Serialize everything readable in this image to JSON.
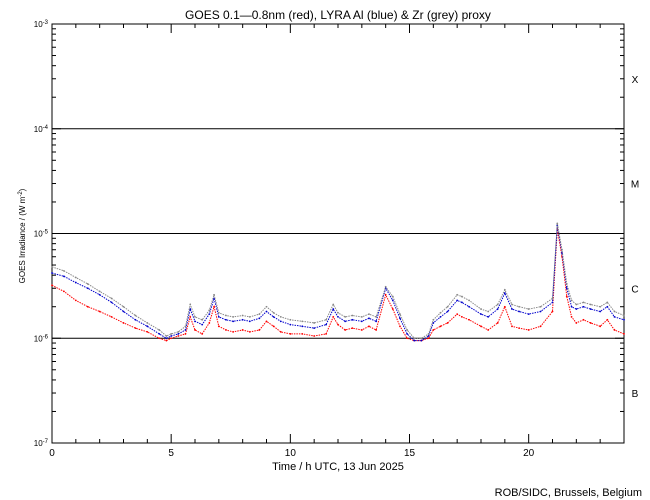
{
  "chart_data": {
    "type": "scatter",
    "title": "GOES 0.1—0.8nm (red), LYRA Al (blue) & Zr (grey) proxy",
    "xlabel": "Time / h UTC, 13 Jun 2025",
    "ylabel": "GOES Irradiance / (W m",
    "ylabel_exp": "-2",
    "ylabel_close": ")",
    "xlim": [
      0,
      24
    ],
    "ylim": [
      1e-07,
      0.001
    ],
    "yscale": "log",
    "x_ticks": [
      "0",
      "5",
      "10",
      "15",
      "20"
    ],
    "x_tick_values": [
      0,
      5,
      10,
      15,
      20
    ],
    "y_tick_values": [
      1e-07,
      1e-06,
      1e-05,
      0.0001,
      0.001
    ],
    "y_tick_labels": [
      {
        "base": "10",
        "exp": "-7"
      },
      {
        "base": "10",
        "exp": "-6"
      },
      {
        "base": "10",
        "exp": "-5"
      },
      {
        "base": "10",
        "exp": "-4"
      },
      {
        "base": "10",
        "exp": "-3"
      }
    ],
    "flare_class_lines": [
      1e-06,
      1e-05,
      0.0001
    ],
    "flare_classes": [
      {
        "label": "X",
        "value": 0.0003
      },
      {
        "label": "M",
        "value": 3e-05
      },
      {
        "label": "C",
        "value": 3e-06
      },
      {
        "label": "B",
        "value": 3e-07
      }
    ],
    "series": [
      {
        "name": "GOES 0.1—0.8nm",
        "color": "#ff0000",
        "x": [
          0,
          0.5,
          1,
          1.5,
          2,
          2.5,
          3,
          3.5,
          4,
          4.5,
          4.8,
          5,
          5.3,
          5.6,
          5.8,
          6,
          6.3,
          6.6,
          6.8,
          7,
          7.3,
          7.6,
          8,
          8.3,
          8.7,
          9,
          9.3,
          9.6,
          10,
          10.5,
          11,
          11.5,
          11.8,
          12,
          12.3,
          12.6,
          13,
          13.3,
          13.6,
          14,
          14.3,
          14.6,
          14.9,
          15.2,
          15.5,
          15.8,
          16,
          16.3,
          16.6,
          17,
          17.2,
          17.5,
          18,
          18.3,
          18.7,
          19,
          19.3,
          19.6,
          20,
          20.5,
          21,
          21.2,
          21.4,
          21.6,
          21.8,
          22,
          22.3,
          22.6,
          23,
          23.3,
          23.6,
          24
        ],
        "y": [
          3.2e-06,
          2.8e-06,
          2.3e-06,
          2e-06,
          1.8e-06,
          1.6e-06,
          1.4e-06,
          1.25e-06,
          1.15e-06,
          1e-06,
          9.5e-07,
          1e-06,
          1.05e-06,
          1.1e-06,
          1.6e-06,
          1.2e-06,
          1.1e-06,
          1.4e-06,
          2e-06,
          1.3e-06,
          1.2e-06,
          1.15e-06,
          1.2e-06,
          1.15e-06,
          1.2e-06,
          1.45e-06,
          1.3e-06,
          1.15e-06,
          1.1e-06,
          1.1e-06,
          1.05e-06,
          1.1e-06,
          1.6e-06,
          1.35e-06,
          1.2e-06,
          1.25e-06,
          1.2e-06,
          1.3e-06,
          1.2e-06,
          2.6e-06,
          1.9e-06,
          1.3e-06,
          1e-06,
          9.5e-07,
          9.5e-07,
          1e-06,
          1.2e-06,
          1.3e-06,
          1.4e-06,
          1.7e-06,
          1.6e-06,
          1.5e-06,
          1.3e-06,
          1.2e-06,
          1.4e-06,
          2e-06,
          1.3e-06,
          1.25e-06,
          1.2e-06,
          1.3e-06,
          1.8e-06,
          1.1e-05,
          6e-06,
          2.5e-06,
          1.6e-06,
          1.4e-06,
          1.5e-06,
          1.4e-06,
          1.3e-06,
          1.5e-06,
          1.2e-06,
          1.1e-06
        ]
      },
      {
        "name": "LYRA Al",
        "color": "#0000cc",
        "x": [
          0,
          0.5,
          1,
          1.5,
          2,
          2.5,
          3,
          3.5,
          4,
          4.5,
          4.8,
          5,
          5.3,
          5.6,
          5.8,
          6,
          6.3,
          6.6,
          6.8,
          7,
          7.3,
          7.6,
          8,
          8.3,
          8.7,
          9,
          9.3,
          9.6,
          10,
          10.5,
          11,
          11.5,
          11.8,
          12,
          12.3,
          12.6,
          13,
          13.3,
          13.6,
          14,
          14.3,
          14.6,
          14.9,
          15.2,
          15.5,
          15.8,
          16,
          16.3,
          16.6,
          17,
          17.2,
          17.5,
          18,
          18.3,
          18.7,
          19,
          19.3,
          19.6,
          20,
          20.5,
          21,
          21.2,
          21.4,
          21.6,
          21.8,
          22,
          22.3,
          22.6,
          23,
          23.3,
          23.6,
          24
        ],
        "y": [
          4.2e-06,
          3.9e-06,
          3.4e-06,
          3e-06,
          2.6e-06,
          2.2e-06,
          1.8e-06,
          1.5e-06,
          1.3e-06,
          1.1e-06,
          1e-06,
          1.05e-06,
          1.1e-06,
          1.2e-06,
          1.9e-06,
          1.45e-06,
          1.35e-06,
          1.7e-06,
          2.4e-06,
          1.6e-06,
          1.5e-06,
          1.45e-06,
          1.5e-06,
          1.45e-06,
          1.55e-06,
          1.8e-06,
          1.6e-06,
          1.45e-06,
          1.35e-06,
          1.3e-06,
          1.25e-06,
          1.35e-06,
          1.9e-06,
          1.6e-06,
          1.45e-06,
          1.5e-06,
          1.45e-06,
          1.55e-06,
          1.45e-06,
          3e-06,
          2.3e-06,
          1.55e-06,
          1.1e-06,
          9.5e-07,
          9.5e-07,
          1.05e-06,
          1.4e-06,
          1.6e-06,
          1.8e-06,
          2.3e-06,
          2.2e-06,
          2e-06,
          1.7e-06,
          1.6e-06,
          1.9e-06,
          2.7e-06,
          1.9e-06,
          1.8e-06,
          1.7e-06,
          1.8e-06,
          2.2e-06,
          1.2e-05,
          6.5e-06,
          3e-06,
          2e-06,
          1.9e-06,
          2e-06,
          1.9e-06,
          1.8e-06,
          2e-06,
          1.6e-06,
          1.5e-06
        ]
      },
      {
        "name": "Zr",
        "color": "#888888",
        "x": [
          0,
          0.5,
          1,
          1.5,
          2,
          2.5,
          3,
          3.5,
          4,
          4.5,
          4.8,
          5,
          5.3,
          5.6,
          5.8,
          6,
          6.3,
          6.6,
          6.8,
          7,
          7.3,
          7.6,
          8,
          8.3,
          8.7,
          9,
          9.3,
          9.6,
          10,
          10.5,
          11,
          11.5,
          11.8,
          12,
          12.3,
          12.6,
          13,
          13.3,
          13.6,
          14,
          14.3,
          14.6,
          14.9,
          15.2,
          15.5,
          15.8,
          16,
          16.3,
          16.6,
          17,
          17.2,
          17.5,
          18,
          18.3,
          18.7,
          19,
          19.3,
          19.6,
          20,
          20.5,
          21,
          21.2,
          21.4,
          21.6,
          21.8,
          22,
          22.3,
          22.6,
          23,
          23.3,
          23.6,
          24
        ],
        "y": [
          4.8e-06,
          4.4e-06,
          3.8e-06,
          3.3e-06,
          2.8e-06,
          2.4e-06,
          2e-06,
          1.65e-06,
          1.4e-06,
          1.2e-06,
          1.05e-06,
          1.1e-06,
          1.15e-06,
          1.3e-06,
          2.1e-06,
          1.6e-06,
          1.5e-06,
          1.85e-06,
          2.6e-06,
          1.75e-06,
          1.65e-06,
          1.6e-06,
          1.65e-06,
          1.6e-06,
          1.7e-06,
          2e-06,
          1.75e-06,
          1.6e-06,
          1.5e-06,
          1.45e-06,
          1.4e-06,
          1.5e-06,
          2.1e-06,
          1.75e-06,
          1.6e-06,
          1.65e-06,
          1.6e-06,
          1.7e-06,
          1.6e-06,
          3.1e-06,
          2.5e-06,
          1.7e-06,
          1.2e-06,
          1e-06,
          1e-06,
          1.1e-06,
          1.5e-06,
          1.75e-06,
          2e-06,
          2.6e-06,
          2.5e-06,
          2.3e-06,
          1.9e-06,
          1.8e-06,
          2.1e-06,
          2.9e-06,
          2.1e-06,
          2e-06,
          1.9e-06,
          2e-06,
          2.4e-06,
          1.25e-05,
          7e-06,
          3.3e-06,
          2.3e-06,
          2.1e-06,
          2.2e-06,
          2.1e-06,
          2e-06,
          2.2e-06,
          1.8e-06,
          1.65e-06
        ]
      }
    ],
    "grid": false,
    "legend": "none",
    "credit": "ROB/SIDC, Brussels, Belgium"
  }
}
